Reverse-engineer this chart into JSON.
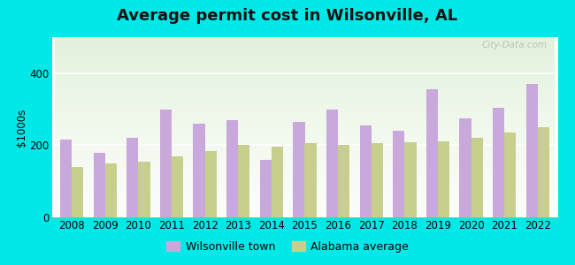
{
  "title": "Average permit cost in Wilsonville, AL",
  "years": [
    2008,
    2009,
    2010,
    2011,
    2012,
    2013,
    2014,
    2015,
    2016,
    2017,
    2018,
    2019,
    2020,
    2021,
    2022
  ],
  "wilsonville": [
    215,
    180,
    220,
    300,
    260,
    270,
    160,
    265,
    300,
    255,
    240,
    355,
    275,
    305,
    370
  ],
  "alabama": [
    140,
    150,
    155,
    168,
    185,
    200,
    197,
    205,
    200,
    205,
    208,
    210,
    220,
    235,
    250
  ],
  "wilsonville_color": "#c9a8dc",
  "alabama_color": "#c8cf8c",
  "bg_outer": "#00e8e8",
  "ylabel": "$1000s",
  "ylim": [
    0,
    500
  ],
  "yticks": [
    0,
    200,
    400
  ],
  "legend_wilsonville": "Wilsonville town",
  "legend_alabama": "Alabama average",
  "bar_width": 0.35,
  "title_fontsize": 13,
  "axis_fontsize": 8.5,
  "legend_fontsize": 9
}
